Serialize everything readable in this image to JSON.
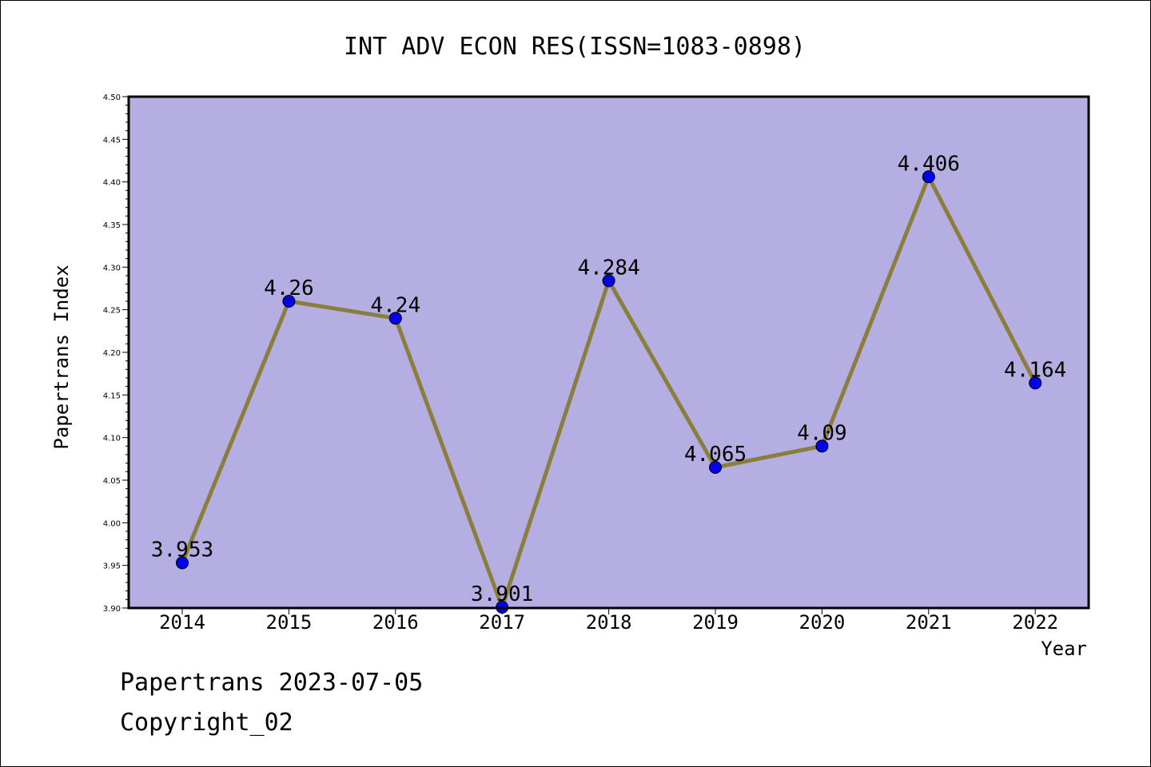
{
  "chart_data": {
    "type": "line",
    "title": "INT ADV ECON RES(ISSN=1083-0898)",
    "xlabel": "Year",
    "ylabel": "Papertrans Index",
    "categories": [
      "2014",
      "2015",
      "2016",
      "2017",
      "2018",
      "2019",
      "2020",
      "2021",
      "2022"
    ],
    "series": [
      {
        "values": [
          3.953,
          4.26,
          4.24,
          3.901,
          4.284,
          4.065,
          4.09,
          4.406,
          4.164
        ],
        "labels": [
          "3.953",
          "4.26",
          "4.24",
          "3.901",
          "4.284",
          "4.065",
          "4.09",
          "4.406",
          "4.164"
        ],
        "line_color": "#8b7d3a",
        "marker_color": "#0000ee"
      }
    ],
    "ylim": [
      3.9,
      4.5
    ],
    "yticks": [
      "3.90",
      "3.95",
      "4.00",
      "4.05",
      "4.10",
      "4.15",
      "4.20",
      "4.25",
      "4.30",
      "4.35",
      "4.40",
      "4.45",
      "4.50"
    ],
    "plot_background": "#b4aee2",
    "grid": false,
    "legend": "none"
  },
  "footer": {
    "line1": "Papertrans 2023-07-05",
    "line2": "Copyright_02"
  }
}
